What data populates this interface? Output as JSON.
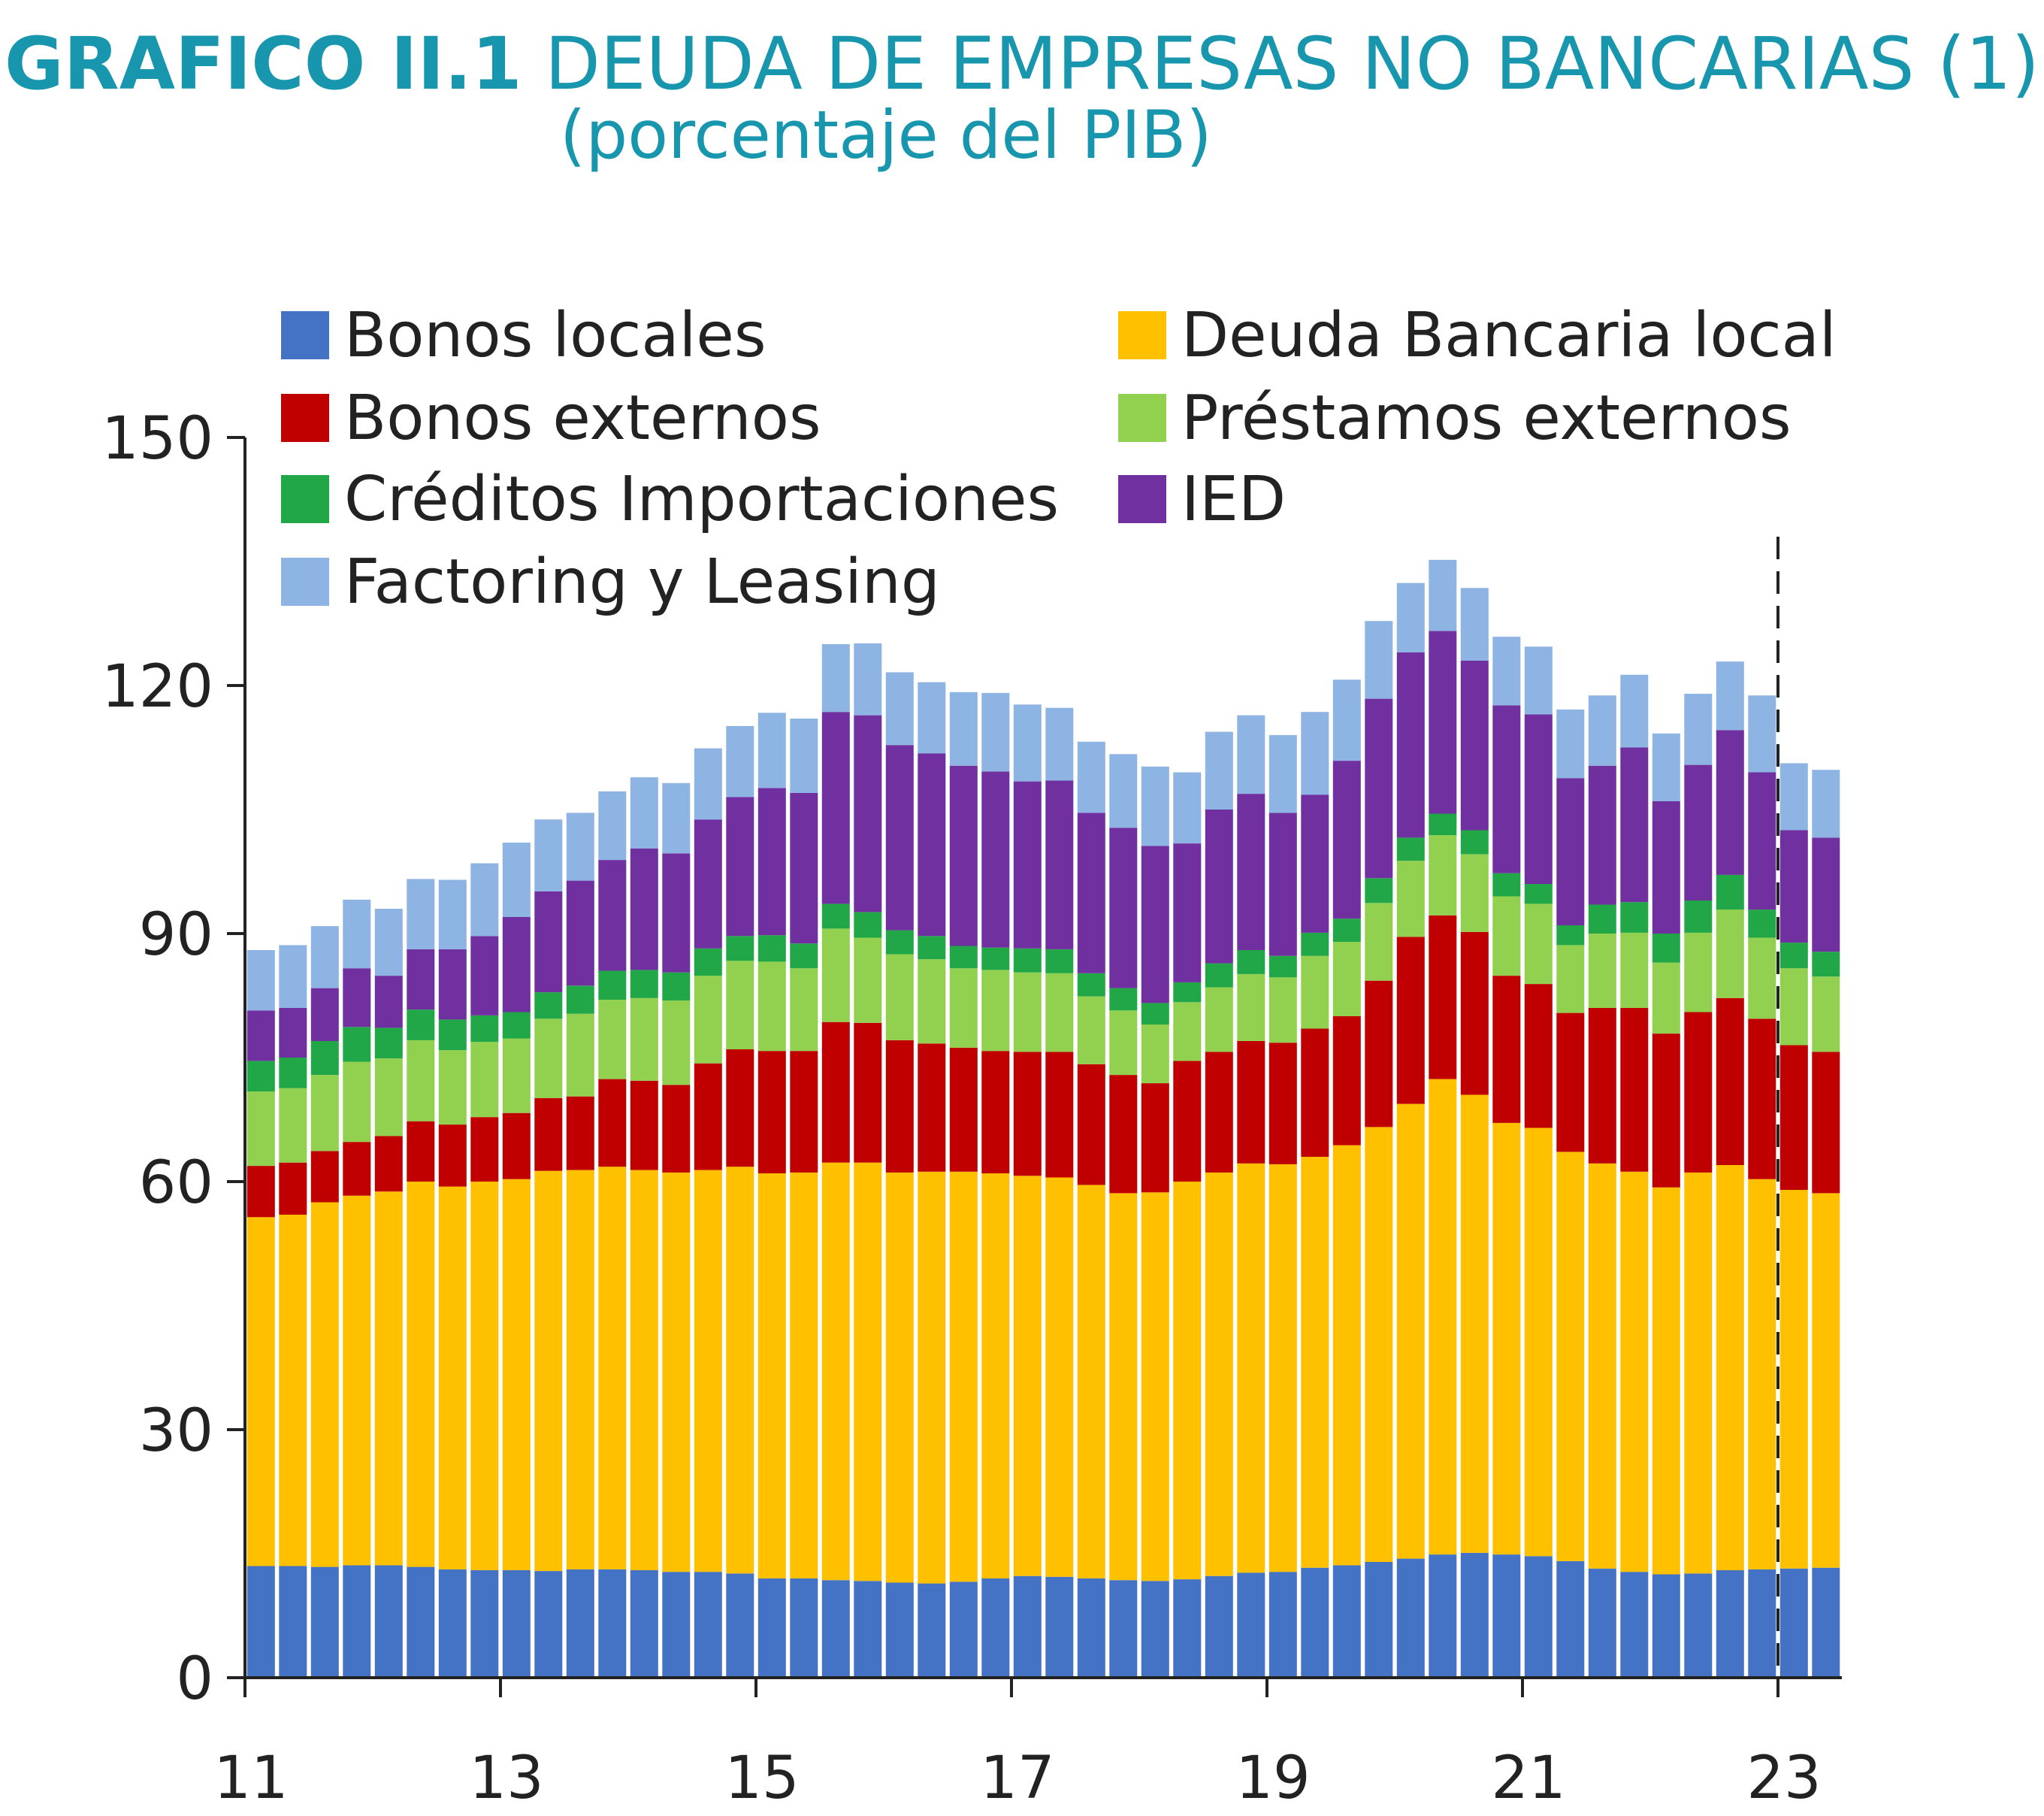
{
  "title": {
    "prefix": "GRAFICO II.1",
    "main": "DEUDA DE EMPRESAS NO BANCARIAS (1)",
    "subtitle": "(porcentaje del PIB)"
  },
  "chart_data": {
    "type": "bar",
    "stacked": true,
    "ylim": [
      0,
      150
    ],
    "yticks": [
      0,
      30,
      60,
      90,
      120,
      150
    ],
    "xtick_labels": [
      "11",
      "13",
      "15",
      "17",
      "19",
      "21",
      "23"
    ],
    "xtick_positions": [
      0,
      8,
      16,
      24,
      32,
      40,
      48
    ],
    "marker_line_position": 48,
    "categories": [
      "2011Q1",
      "2011Q2",
      "2011Q3",
      "2011Q4",
      "2012Q1",
      "2012Q2",
      "2012Q3",
      "2012Q4",
      "2013Q1",
      "2013Q2",
      "2013Q3",
      "2013Q4",
      "2014Q1",
      "2014Q2",
      "2014Q3",
      "2014Q4",
      "2015Q1",
      "2015Q2",
      "2015Q3",
      "2015Q4",
      "2016Q1",
      "2016Q2",
      "2016Q3",
      "2016Q4",
      "2017Q1",
      "2017Q2",
      "2017Q3",
      "2017Q4",
      "2018Q1",
      "2018Q2",
      "2018Q3",
      "2018Q4",
      "2019Q1",
      "2019Q2",
      "2019Q3",
      "2019Q4",
      "2020Q1",
      "2020Q2",
      "2020Q3",
      "2020Q4",
      "2021Q1",
      "2021Q2",
      "2021Q3",
      "2021Q4",
      "2022Q1",
      "2022Q2",
      "2022Q3",
      "2022Q4",
      "2023Q1",
      "2023Q2"
    ],
    "legend": {
      "placement": "top",
      "columns": 2
    },
    "series": [
      {
        "name": "Bonos locales",
        "color": "#4472c4",
        "values": [
          13.5,
          13.5,
          13.4,
          13.6,
          13.6,
          13.4,
          13.1,
          13,
          13,
          12.9,
          13.1,
          13.1,
          13,
          12.8,
          12.8,
          12.6,
          12,
          12,
          11.8,
          11.7,
          11.5,
          11.4,
          11.6,
          12,
          12.3,
          12.2,
          12,
          11.8,
          11.7,
          11.9,
          12.3,
          12.7,
          12.8,
          13.3,
          13.6,
          14,
          14.4,
          14.9,
          15.1,
          14.9,
          14.7,
          14.1,
          13.2,
          12.8,
          12.5,
          12.6,
          13,
          13.1,
          13.2,
          13.3
        ]
      },
      {
        "name": "Deuda Bancaria local",
        "color": "#ffc000",
        "values": [
          42.2,
          42.5,
          44.1,
          44.7,
          45.2,
          46.6,
          46.3,
          47,
          47.3,
          48.4,
          48.3,
          48.7,
          48.4,
          48.3,
          48.6,
          49.2,
          49,
          49.1,
          50.5,
          50.6,
          49.6,
          49.8,
          49.6,
          49,
          48.4,
          48.3,
          47.6,
          46.8,
          47,
          48.1,
          48.8,
          49.5,
          49.3,
          49.7,
          50.8,
          52.6,
          55,
          57.5,
          55.4,
          52.2,
          51.8,
          49.5,
          49,
          48.4,
          46.8,
          48.5,
          49,
          47.2,
          45.8,
          45.3
        ]
      },
      {
        "name": "Bonos externos",
        "color": "#c00000",
        "values": [
          6.2,
          6.3,
          6.2,
          6.5,
          6.7,
          7.3,
          7.5,
          7.8,
          8,
          8.8,
          8.9,
          10.6,
          10.8,
          10.6,
          12.9,
          14.2,
          14.8,
          14.7,
          17,
          16.9,
          16,
          15.5,
          15,
          14.8,
          15,
          15.2,
          14.6,
          14.3,
          13.2,
          14.6,
          14.6,
          14.8,
          14.7,
          15.5,
          15.6,
          17.7,
          20.2,
          19.8,
          19.7,
          17.8,
          17.4,
          16.8,
          18.8,
          19.8,
          18.6,
          19.4,
          20.2,
          19.4,
          17.5,
          17.1
        ]
      },
      {
        "name": "Préstamos externos",
        "color": "#92d050",
        "values": [
          9,
          9,
          9.2,
          9.7,
          9.4,
          9.8,
          9,
          9.1,
          9,
          9.6,
          10,
          9.6,
          10,
          10.2,
          10.6,
          10.7,
          10.8,
          10,
          11.3,
          10.3,
          10.4,
          10.2,
          9.6,
          9.8,
          9.6,
          9.5,
          8.2,
          7.8,
          7.1,
          7.1,
          7.8,
          8.1,
          7.9,
          8.8,
          9,
          9.4,
          9.2,
          9.7,
          9.4,
          9.6,
          9.7,
          8.2,
          9,
          9.1,
          8.6,
          9.6,
          10.7,
          9.8,
          9.3,
          9.1
        ]
      },
      {
        "name": "Créditos Importaciones",
        "color": "#21a748",
        "values": [
          3.7,
          3.7,
          4.1,
          4.2,
          3.7,
          3.7,
          3.7,
          3.2,
          3.2,
          3.2,
          3.4,
          3.5,
          3.4,
          3.4,
          3.3,
          3,
          3.2,
          3,
          3,
          3.1,
          2.9,
          2.8,
          2.7,
          2.7,
          2.9,
          2.9,
          2.8,
          2.7,
          2.6,
          2.4,
          2.9,
          2.9,
          2.6,
          2.8,
          2.8,
          3,
          2.8,
          2.6,
          2.9,
          2.8,
          2.4,
          2.4,
          3.5,
          3.7,
          3.5,
          3.9,
          4.2,
          3.4,
          3.1,
          3
        ]
      },
      {
        "name": "IED",
        "color": "#7030a0",
        "values": [
          6.1,
          6,
          6.4,
          7.1,
          6.3,
          7.3,
          8.5,
          9.6,
          11.5,
          12.2,
          12.7,
          13.4,
          14.7,
          14.4,
          15.6,
          16.8,
          17.8,
          18.2,
          23.2,
          23.8,
          22.4,
          22.1,
          21.8,
          21.3,
          20.2,
          20.4,
          19.4,
          19.4,
          19,
          16.8,
          18.6,
          18.9,
          17.3,
          16.7,
          19.1,
          21.7,
          22.4,
          22.1,
          20.5,
          20.3,
          20.5,
          17.8,
          16.8,
          18.7,
          16,
          16.4,
          17.5,
          16.6,
          13.6,
          13.8
        ]
      },
      {
        "name": "Factoring y Leasing",
        "color": "#8eb4e3",
        "values": [
          7.3,
          7.6,
          7.5,
          8.3,
          8.1,
          8.5,
          8.4,
          8.8,
          9,
          8.7,
          8.2,
          8.3,
          8.6,
          8.5,
          8.6,
          8.6,
          9.1,
          9,
          8.2,
          8.7,
          8.8,
          8.6,
          8.9,
          9.5,
          9.3,
          8.8,
          8.6,
          8.9,
          9.6,
          8.6,
          9.4,
          9.5,
          9.4,
          10,
          9.8,
          9.4,
          8.4,
          8.6,
          8.8,
          8.3,
          8.2,
          8.3,
          8.5,
          8.8,
          8.2,
          8.6,
          8.3,
          9.3,
          8.1,
          8.2
        ]
      }
    ]
  }
}
